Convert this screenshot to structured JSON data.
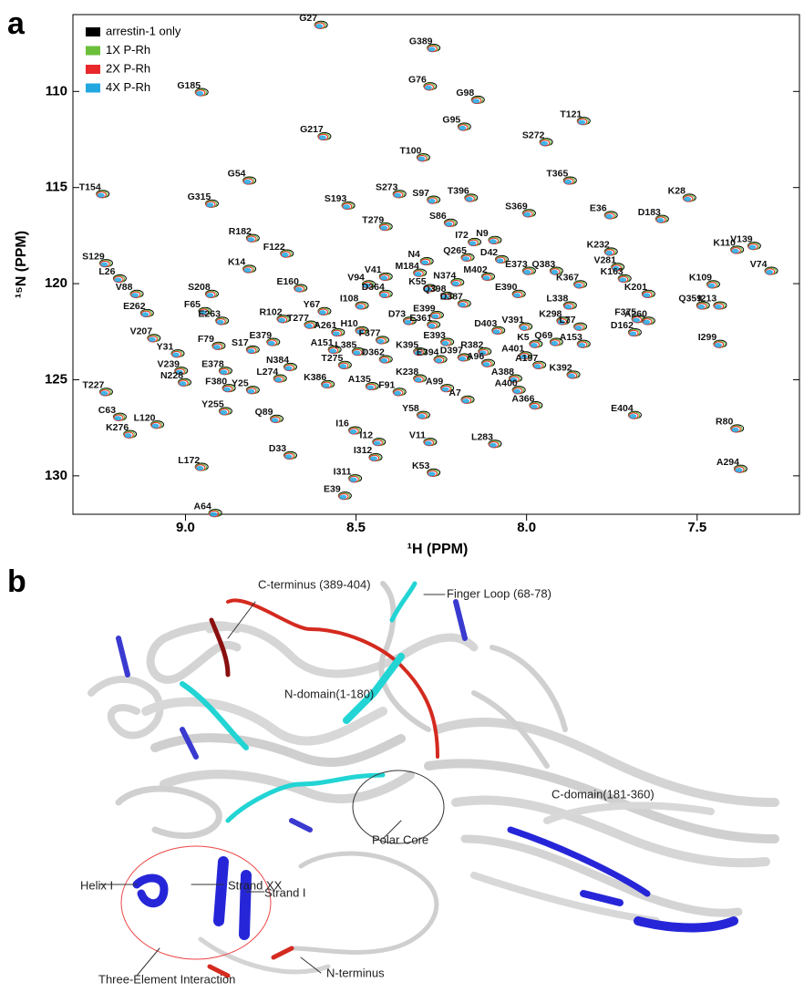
{
  "panel_labels": [
    "a",
    "b"
  ],
  "chart_data": {
    "type": "nmr",
    "x_label": "¹H (PPM)",
    "y_label": "¹⁵N (PPM)",
    "xlim": [
      7.2,
      9.33
    ],
    "xreverse": true,
    "xticks": [
      {
        "value": 9,
        "label": "9.0"
      },
      8.5,
      {
        "value": 8,
        "label": "8.0"
      },
      7.5
    ],
    "ylim": [
      106,
      132
    ],
    "yreverse": true,
    "yticks": [
      110,
      115,
      120,
      125,
      130
    ],
    "legend": "top-left",
    "series": [
      {
        "name": "arrestin-1 only",
        "color": "#000000"
      },
      {
        "name": "1X P-Rh",
        "color": "#6cbf3a"
      },
      {
        "name": "2X P-Rh",
        "color": "#e8282b"
      },
      {
        "name": "4X P-Rh",
        "color": "#22a7e0"
      }
    ],
    "peaks": [
      {
        "label": "G27",
        "x": 8.64,
        "y": 106.2
      },
      {
        "label": "G389",
        "x": 8.31,
        "y": 107.4
      },
      {
        "label": "G76",
        "x": 8.32,
        "y": 109.4
      },
      {
        "label": "G185",
        "x": 8.99,
        "y": 109.7
      },
      {
        "label": "G98",
        "x": 8.18,
        "y": 110.1
      },
      {
        "label": "T121",
        "x": 7.87,
        "y": 111.2
      },
      {
        "label": "G95",
        "x": 8.22,
        "y": 111.5
      },
      {
        "label": "S272",
        "x": 7.98,
        "y": 112.3
      },
      {
        "label": "G217",
        "x": 8.63,
        "y": 112.0
      },
      {
        "label": "T100",
        "x": 8.34,
        "y": 113.1
      },
      {
        "label": "T365",
        "x": 7.91,
        "y": 114.3
      },
      {
        "label": "G54",
        "x": 8.85,
        "y": 114.3
      },
      {
        "label": "T154",
        "x": 9.28,
        "y": 115.0
      },
      {
        "label": "K28",
        "x": 7.56,
        "y": 115.2
      },
      {
        "label": "S273",
        "x": 8.41,
        "y": 115.0
      },
      {
        "label": "S97",
        "x": 8.31,
        "y": 115.3
      },
      {
        "label": "T396",
        "x": 8.2,
        "y": 115.2
      },
      {
        "label": "S193",
        "x": 8.56,
        "y": 115.6
      },
      {
        "label": "G315",
        "x": 8.96,
        "y": 115.5
      },
      {
        "label": "S86",
        "x": 8.26,
        "y": 116.5
      },
      {
        "label": "S369",
        "x": 8.03,
        "y": 116.0
      },
      {
        "label": "E36",
        "x": 7.79,
        "y": 116.1
      },
      {
        "label": "D183",
        "x": 7.64,
        "y": 116.3
      },
      {
        "label": "T279",
        "x": 8.45,
        "y": 116.7
      },
      {
        "label": "R182",
        "x": 8.84,
        "y": 117.3
      },
      {
        "label": "I72",
        "x": 8.19,
        "y": 117.5
      },
      {
        "label": "N9",
        "x": 8.13,
        "y": 117.4
      },
      {
        "label": "Q265",
        "x": 8.21,
        "y": 118.3
      },
      {
        "label": "D42",
        "x": 8.11,
        "y": 118.4
      },
      {
        "label": "K232",
        "x": 7.79,
        "y": 118.0
      },
      {
        "label": "N4",
        "x": 8.33,
        "y": 118.5
      },
      {
        "label": "F122",
        "x": 8.74,
        "y": 118.1
      },
      {
        "label": "V139",
        "x": 7.37,
        "y": 117.7
      },
      {
        "label": "K110",
        "x": 7.42,
        "y": 117.9
      },
      {
        "label": "S129",
        "x": 9.27,
        "y": 118.6
      },
      {
        "label": "K14",
        "x": 8.85,
        "y": 118.9
      },
      {
        "label": "M184",
        "x": 8.35,
        "y": 119.1
      },
      {
        "label": "V281",
        "x": 7.77,
        "y": 118.8
      },
      {
        "label": "E373",
        "x": 8.03,
        "y": 119.0
      },
      {
        "label": "Q383",
        "x": 7.95,
        "y": 119.0
      },
      {
        "label": "V74",
        "x": 7.32,
        "y": 119.0
      },
      {
        "label": "L26",
        "x": 9.23,
        "y": 119.4
      },
      {
        "label": "V41",
        "x": 8.45,
        "y": 119.3
      },
      {
        "label": "N374",
        "x": 8.24,
        "y": 119.6
      },
      {
        "label": "M402",
        "x": 8.15,
        "y": 119.3
      },
      {
        "label": "K367",
        "x": 7.88,
        "y": 119.7
      },
      {
        "label": "K163",
        "x": 7.75,
        "y": 119.4
      },
      {
        "label": "K109",
        "x": 7.49,
        "y": 119.7
      },
      {
        "label": "V88",
        "x": 9.18,
        "y": 120.2
      },
      {
        "label": "S208",
        "x": 8.96,
        "y": 120.2
      },
      {
        "label": "E160",
        "x": 8.7,
        "y": 119.9
      },
      {
        "label": "V94",
        "x": 8.5,
        "y": 119.7
      },
      {
        "label": "K55",
        "x": 8.32,
        "y": 119.9
      },
      {
        "label": "Q398",
        "x": 8.27,
        "y": 120.3
      },
      {
        "label": "D364",
        "x": 8.45,
        "y": 120.2
      },
      {
        "label": "E390",
        "x": 8.06,
        "y": 120.2
      },
      {
        "label": "K201",
        "x": 7.68,
        "y": 120.2
      },
      {
        "label": "I213",
        "x": 7.47,
        "y": 120.8
      },
      {
        "label": "F65",
        "x": 8.98,
        "y": 121.1
      },
      {
        "label": "E262",
        "x": 9.15,
        "y": 121.2
      },
      {
        "label": "Y67",
        "x": 8.63,
        "y": 121.1
      },
      {
        "label": "I108",
        "x": 8.52,
        "y": 120.8
      },
      {
        "label": "D387",
        "x": 8.22,
        "y": 120.7
      },
      {
        "label": "L338",
        "x": 7.91,
        "y": 120.8
      },
      {
        "label": "Q359",
        "x": 7.52,
        "y": 120.8
      },
      {
        "label": "R102",
        "x": 8.75,
        "y": 121.5
      },
      {
        "label": "E263",
        "x": 8.93,
        "y": 121.6
      },
      {
        "label": "T277",
        "x": 8.67,
        "y": 121.8
      },
      {
        "label": "E399",
        "x": 8.3,
        "y": 121.3
      },
      {
        "label": "D73",
        "x": 8.38,
        "y": 121.6
      },
      {
        "label": "E361",
        "x": 8.31,
        "y": 121.8
      },
      {
        "label": "K298",
        "x": 7.93,
        "y": 121.6
      },
      {
        "label": "F375",
        "x": 7.71,
        "y": 121.5
      },
      {
        "label": "A260",
        "x": 7.68,
        "y": 121.6
      },
      {
        "label": "V207",
        "x": 9.13,
        "y": 122.5
      },
      {
        "label": "A261",
        "x": 8.59,
        "y": 122.2
      },
      {
        "label": "H10",
        "x": 8.52,
        "y": 122.1
      },
      {
        "label": "F377",
        "x": 8.46,
        "y": 122.6
      },
      {
        "label": "D403",
        "x": 8.12,
        "y": 122.1
      },
      {
        "label": "V391",
        "x": 8.04,
        "y": 121.9
      },
      {
        "label": "L77",
        "x": 7.88,
        "y": 121.9
      },
      {
        "label": "D162",
        "x": 7.72,
        "y": 122.2
      },
      {
        "label": "E379",
        "x": 8.78,
        "y": 122.7
      },
      {
        "label": "Y31",
        "x": 9.06,
        "y": 123.3
      },
      {
        "label": "F79",
        "x": 8.94,
        "y": 122.9
      },
      {
        "label": "S17",
        "x": 8.84,
        "y": 123.1
      },
      {
        "label": "E393",
        "x": 8.27,
        "y": 122.7
      },
      {
        "label": "Q69",
        "x": 7.95,
        "y": 122.7
      },
      {
        "label": "A153",
        "x": 7.87,
        "y": 122.8
      },
      {
        "label": "I299",
        "x": 7.47,
        "y": 122.8
      },
      {
        "label": "K5",
        "x": 8.01,
        "y": 122.8
      },
      {
        "label": "R382",
        "x": 8.16,
        "y": 123.2
      },
      {
        "label": "A151",
        "x": 8.6,
        "y": 123.1
      },
      {
        "label": "L385",
        "x": 8.53,
        "y": 123.2
      },
      {
        "label": "K395",
        "x": 8.35,
        "y": 123.2
      },
      {
        "label": "N384",
        "x": 8.73,
        "y": 124.0
      },
      {
        "label": "T275",
        "x": 8.57,
        "y": 123.9
      },
      {
        "label": "D362",
        "x": 8.45,
        "y": 123.6
      },
      {
        "label": "D397",
        "x": 8.22,
        "y": 123.5
      },
      {
        "label": "E394",
        "x": 8.29,
        "y": 123.6
      },
      {
        "label": "A401",
        "x": 8.04,
        "y": 123.4
      },
      {
        "label": "A197",
        "x": 8.0,
        "y": 123.9
      },
      {
        "label": "V239",
        "x": 9.05,
        "y": 124.2
      },
      {
        "label": "E378",
        "x": 8.92,
        "y": 124.2
      },
      {
        "label": "L274",
        "x": 8.76,
        "y": 124.6
      },
      {
        "label": "K386",
        "x": 8.62,
        "y": 124.9
      },
      {
        "label": "A135",
        "x": 8.49,
        "y": 125.0
      },
      {
        "label": "K238",
        "x": 8.35,
        "y": 124.6
      },
      {
        "label": "A96",
        "x": 8.15,
        "y": 123.8
      },
      {
        "label": "Y25",
        "x": 8.84,
        "y": 125.2
      },
      {
        "label": "N228",
        "x": 9.04,
        "y": 124.8
      },
      {
        "label": "F380",
        "x": 8.91,
        "y": 125.1
      },
      {
        "label": "F91",
        "x": 8.41,
        "y": 125.3
      },
      {
        "label": "A99",
        "x": 8.27,
        "y": 125.1
      },
      {
        "label": "A388",
        "x": 8.07,
        "y": 124.6
      },
      {
        "label": "K392",
        "x": 7.9,
        "y": 124.4
      },
      {
        "label": "T227",
        "x": 9.27,
        "y": 125.3
      },
      {
        "label": "A400",
        "x": 8.06,
        "y": 125.2
      },
      {
        "label": "Y255",
        "x": 8.92,
        "y": 126.3
      },
      {
        "label": "A7",
        "x": 8.21,
        "y": 125.7
      },
      {
        "label": "A366",
        "x": 8.01,
        "y": 126.0
      },
      {
        "label": "C63",
        "x": 9.23,
        "y": 126.6
      },
      {
        "label": "Q89",
        "x": 8.77,
        "y": 126.7
      },
      {
        "label": "Y58",
        "x": 8.34,
        "y": 126.5
      },
      {
        "label": "E404",
        "x": 7.72,
        "y": 126.5
      },
      {
        "label": "L120",
        "x": 9.12,
        "y": 127.0
      },
      {
        "label": "R80",
        "x": 7.42,
        "y": 127.2
      },
      {
        "label": "K276",
        "x": 9.2,
        "y": 127.5
      },
      {
        "label": "I16",
        "x": 8.54,
        "y": 127.3
      },
      {
        "label": "I12",
        "x": 8.47,
        "y": 127.9
      },
      {
        "label": "V11",
        "x": 8.32,
        "y": 127.9
      },
      {
        "label": "L283",
        "x": 8.13,
        "y": 128.0
      },
      {
        "label": "D33",
        "x": 8.73,
        "y": 128.6
      },
      {
        "label": "I312",
        "x": 8.48,
        "y": 128.7
      },
      {
        "label": "L172",
        "x": 8.99,
        "y": 129.2
      },
      {
        "label": "A294",
        "x": 7.41,
        "y": 129.3
      },
      {
        "label": "K53",
        "x": 8.31,
        "y": 129.5
      },
      {
        "label": "I311",
        "x": 8.54,
        "y": 129.8
      },
      {
        "label": "E39",
        "x": 8.57,
        "y": 130.7
      },
      {
        "label": "A64",
        "x": 8.95,
        "y": 131.6
      }
    ]
  },
  "structure": {
    "labels": [
      "C-terminus (389-404)",
      "Finger Loop (68-78)",
      "N-domain(1-180)",
      "C-domain(181-360)",
      "Polar Core",
      "Helix I",
      "Strand XX",
      "Strand I",
      "Three-Element Interaction",
      "N-terminus"
    ]
  }
}
